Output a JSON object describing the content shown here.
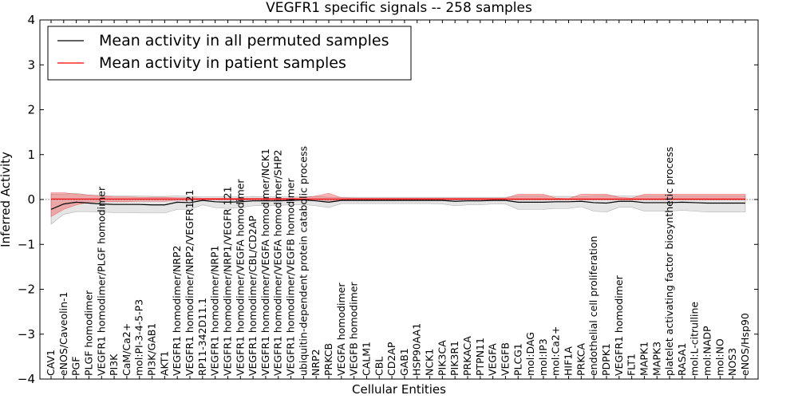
{
  "chart_data": {
    "type": "line",
    "title": "VEGFR1 specific signals -- 258 samples",
    "xlabel": "Cellular Entities",
    "ylabel": "Inferred Activity",
    "ylim": [
      -4,
      4
    ],
    "yticks": [
      -4,
      -3,
      -2,
      -1,
      0,
      1,
      2,
      3,
      4
    ],
    "grid": false,
    "legend_position": "top-left",
    "categories": [
      "CAV1",
      "eNOS/Caveolin-1",
      "PGF",
      "PLGF homodimer",
      "VEGFR1 homodimer/PLGF homodimer",
      "PI3K",
      "CaM/Ca2+",
      "mol:PI-3-4-5-P3",
      "PI3K/GAB1",
      "AKT1",
      "VEGFR1 homodimer/NRP2",
      "VEGFR1 homodimer/NRP2/VEGFR121",
      "RP11-342D11.1",
      "VEGFR1 homodimer/NRP1",
      "VEGFR1 homodimer/NRP1/VEGFR 121",
      "VEGFR1 homodimer/VEGFA homodimer",
      "VEGFR1 homodimer/CBL/CD2AP",
      "VEGFR1 homodimer/VEGFA homodimer/NCK1",
      "VEGFR1 homodimer/VEGFA homodimer/SHP2",
      "VEGFR1 homodimer/VEGFB homodimer",
      "ubiquitin-dependent protein catabolic process",
      "NRP2",
      "PRKCB",
      "VEGFA homodimer",
      "VEGFB homodimer",
      "CALM1",
      "CBL",
      "CD2AP",
      "GAB1",
      "HSP90AA1",
      "NCK1",
      "PIK3CA",
      "PIK3R1",
      "PRKACA",
      "PTPN11",
      "VEGFA",
      "VEGFB",
      "PLCG1",
      "mol:DAG",
      "mol:IP3",
      "mol:Ca2+",
      "HIF1A",
      "PRKCA",
      "endothelial cell proliferation",
      "PDPK1",
      "VEGFR1 homodimer",
      "FLT1",
      "MAPK1",
      "MAPK3",
      "platelet activating factor biosynthetic process",
      "RASA1",
      "mol:L-citrulline",
      "mol:NADP",
      "mol:NO",
      "NOS3",
      "eNOS/Hsp90"
    ],
    "series": [
      {
        "name": "Mean activity in all permuted samples",
        "color": "#000000",
        "values": [
          -0.22,
          -0.1,
          -0.06,
          -0.08,
          -0.1,
          -0.11,
          -0.11,
          -0.11,
          -0.12,
          -0.12,
          -0.06,
          -0.07,
          -0.02,
          -0.05,
          -0.06,
          -0.05,
          -0.03,
          -0.03,
          -0.03,
          -0.02,
          -0.01,
          -0.03,
          -0.06,
          -0.02,
          -0.02,
          -0.02,
          -0.02,
          -0.02,
          -0.02,
          -0.02,
          -0.02,
          -0.02,
          -0.04,
          -0.03,
          -0.03,
          -0.02,
          -0.02,
          -0.06,
          -0.06,
          -0.06,
          -0.05,
          -0.05,
          -0.04,
          -0.07,
          -0.08,
          -0.04,
          -0.04,
          -0.07,
          -0.07,
          -0.07,
          -0.06,
          -0.07,
          -0.08,
          -0.08,
          -0.08,
          -0.08
        ],
        "band_low": [
          -0.55,
          -0.33,
          -0.27,
          -0.27,
          -0.28,
          -0.29,
          -0.29,
          -0.3,
          -0.3,
          -0.3,
          -0.22,
          -0.22,
          -0.12,
          -0.18,
          -0.2,
          -0.18,
          -0.14,
          -0.13,
          -0.13,
          -0.12,
          -0.11,
          -0.14,
          -0.18,
          -0.09,
          -0.09,
          -0.09,
          -0.09,
          -0.09,
          -0.09,
          -0.09,
          -0.09,
          -0.1,
          -0.14,
          -0.12,
          -0.12,
          -0.1,
          -0.1,
          -0.22,
          -0.22,
          -0.22,
          -0.2,
          -0.2,
          -0.16,
          -0.26,
          -0.28,
          -0.17,
          -0.17,
          -0.26,
          -0.26,
          -0.26,
          -0.24,
          -0.26,
          -0.28,
          -0.28,
          -0.28,
          -0.28
        ],
        "band_high": [
          0.12,
          0.12,
          0.14,
          0.1,
          0.09,
          0.08,
          0.08,
          0.08,
          0.07,
          0.07,
          0.08,
          0.07,
          0.06,
          0.06,
          0.06,
          0.06,
          0.07,
          0.06,
          0.06,
          0.06,
          0.06,
          0.07,
          0.05,
          0.05,
          0.05,
          0.05,
          0.05,
          0.05,
          0.05,
          0.05,
          0.05,
          0.05,
          0.05,
          0.05,
          0.05,
          0.05,
          0.05,
          0.08,
          0.08,
          0.08,
          0.07,
          0.07,
          0.06,
          0.08,
          0.09,
          0.08,
          0.08,
          0.08,
          0.08,
          0.08,
          0.08,
          0.08,
          0.08,
          0.08,
          0.08,
          0.08
        ]
      },
      {
        "name": "Mean activity in patient samples",
        "color": "#ff0000",
        "values": [
          0.01,
          0.01,
          0.01,
          0.01,
          0.01,
          0.01,
          0.01,
          0.01,
          0.01,
          0.01,
          0.01,
          0.01,
          0.01,
          0.01,
          0.01,
          0.01,
          0.01,
          0.01,
          0.01,
          0.01,
          0.01,
          0.01,
          0.01,
          0.01,
          0.01,
          0.01,
          0.01,
          0.01,
          0.01,
          0.01,
          0.01,
          0.01,
          0.01,
          0.01,
          0.01,
          0.01,
          0.01,
          0.01,
          0.01,
          0.01,
          0.01,
          0.01,
          0.01,
          0.01,
          0.01,
          0.01,
          0.01,
          0.01,
          0.01,
          0.01,
          0.01,
          0.01,
          0.01,
          0.01,
          0.01,
          0.01
        ],
        "band_low": [
          -0.38,
          -0.22,
          -0.12,
          -0.06,
          -0.05,
          -0.05,
          -0.05,
          -0.04,
          -0.04,
          -0.04,
          -0.02,
          -0.02,
          -0.01,
          -0.01,
          -0.01,
          -0.01,
          -0.01,
          -0.01,
          -0.01,
          -0.01,
          -0.01,
          -0.01,
          -0.03,
          -0.01,
          -0.01,
          -0.01,
          -0.01,
          -0.01,
          -0.01,
          -0.01,
          -0.01,
          -0.01,
          -0.01,
          -0.01,
          -0.01,
          -0.01,
          -0.01,
          -0.01,
          -0.01,
          -0.01,
          -0.01,
          -0.01,
          -0.01,
          -0.01,
          -0.01,
          -0.01,
          -0.01,
          -0.01,
          -0.01,
          -0.01,
          -0.01,
          -0.01,
          -0.01,
          -0.01,
          -0.01,
          -0.01
        ],
        "band_high": [
          0.15,
          0.15,
          0.12,
          0.1,
          0.08,
          0.06,
          0.06,
          0.05,
          0.05,
          0.05,
          0.04,
          0.04,
          0.03,
          0.03,
          0.03,
          0.03,
          0.03,
          0.03,
          0.03,
          0.03,
          0.04,
          0.08,
          0.14,
          0.04,
          0.03,
          0.03,
          0.03,
          0.03,
          0.03,
          0.03,
          0.03,
          0.03,
          0.03,
          0.03,
          0.03,
          0.03,
          0.03,
          0.12,
          0.12,
          0.12,
          0.03,
          0.02,
          0.12,
          0.12,
          0.12,
          0.05,
          0.03,
          0.12,
          0.12,
          0.12,
          0.12,
          0.12,
          0.12,
          0.12,
          0.12,
          0.12
        ]
      }
    ]
  }
}
